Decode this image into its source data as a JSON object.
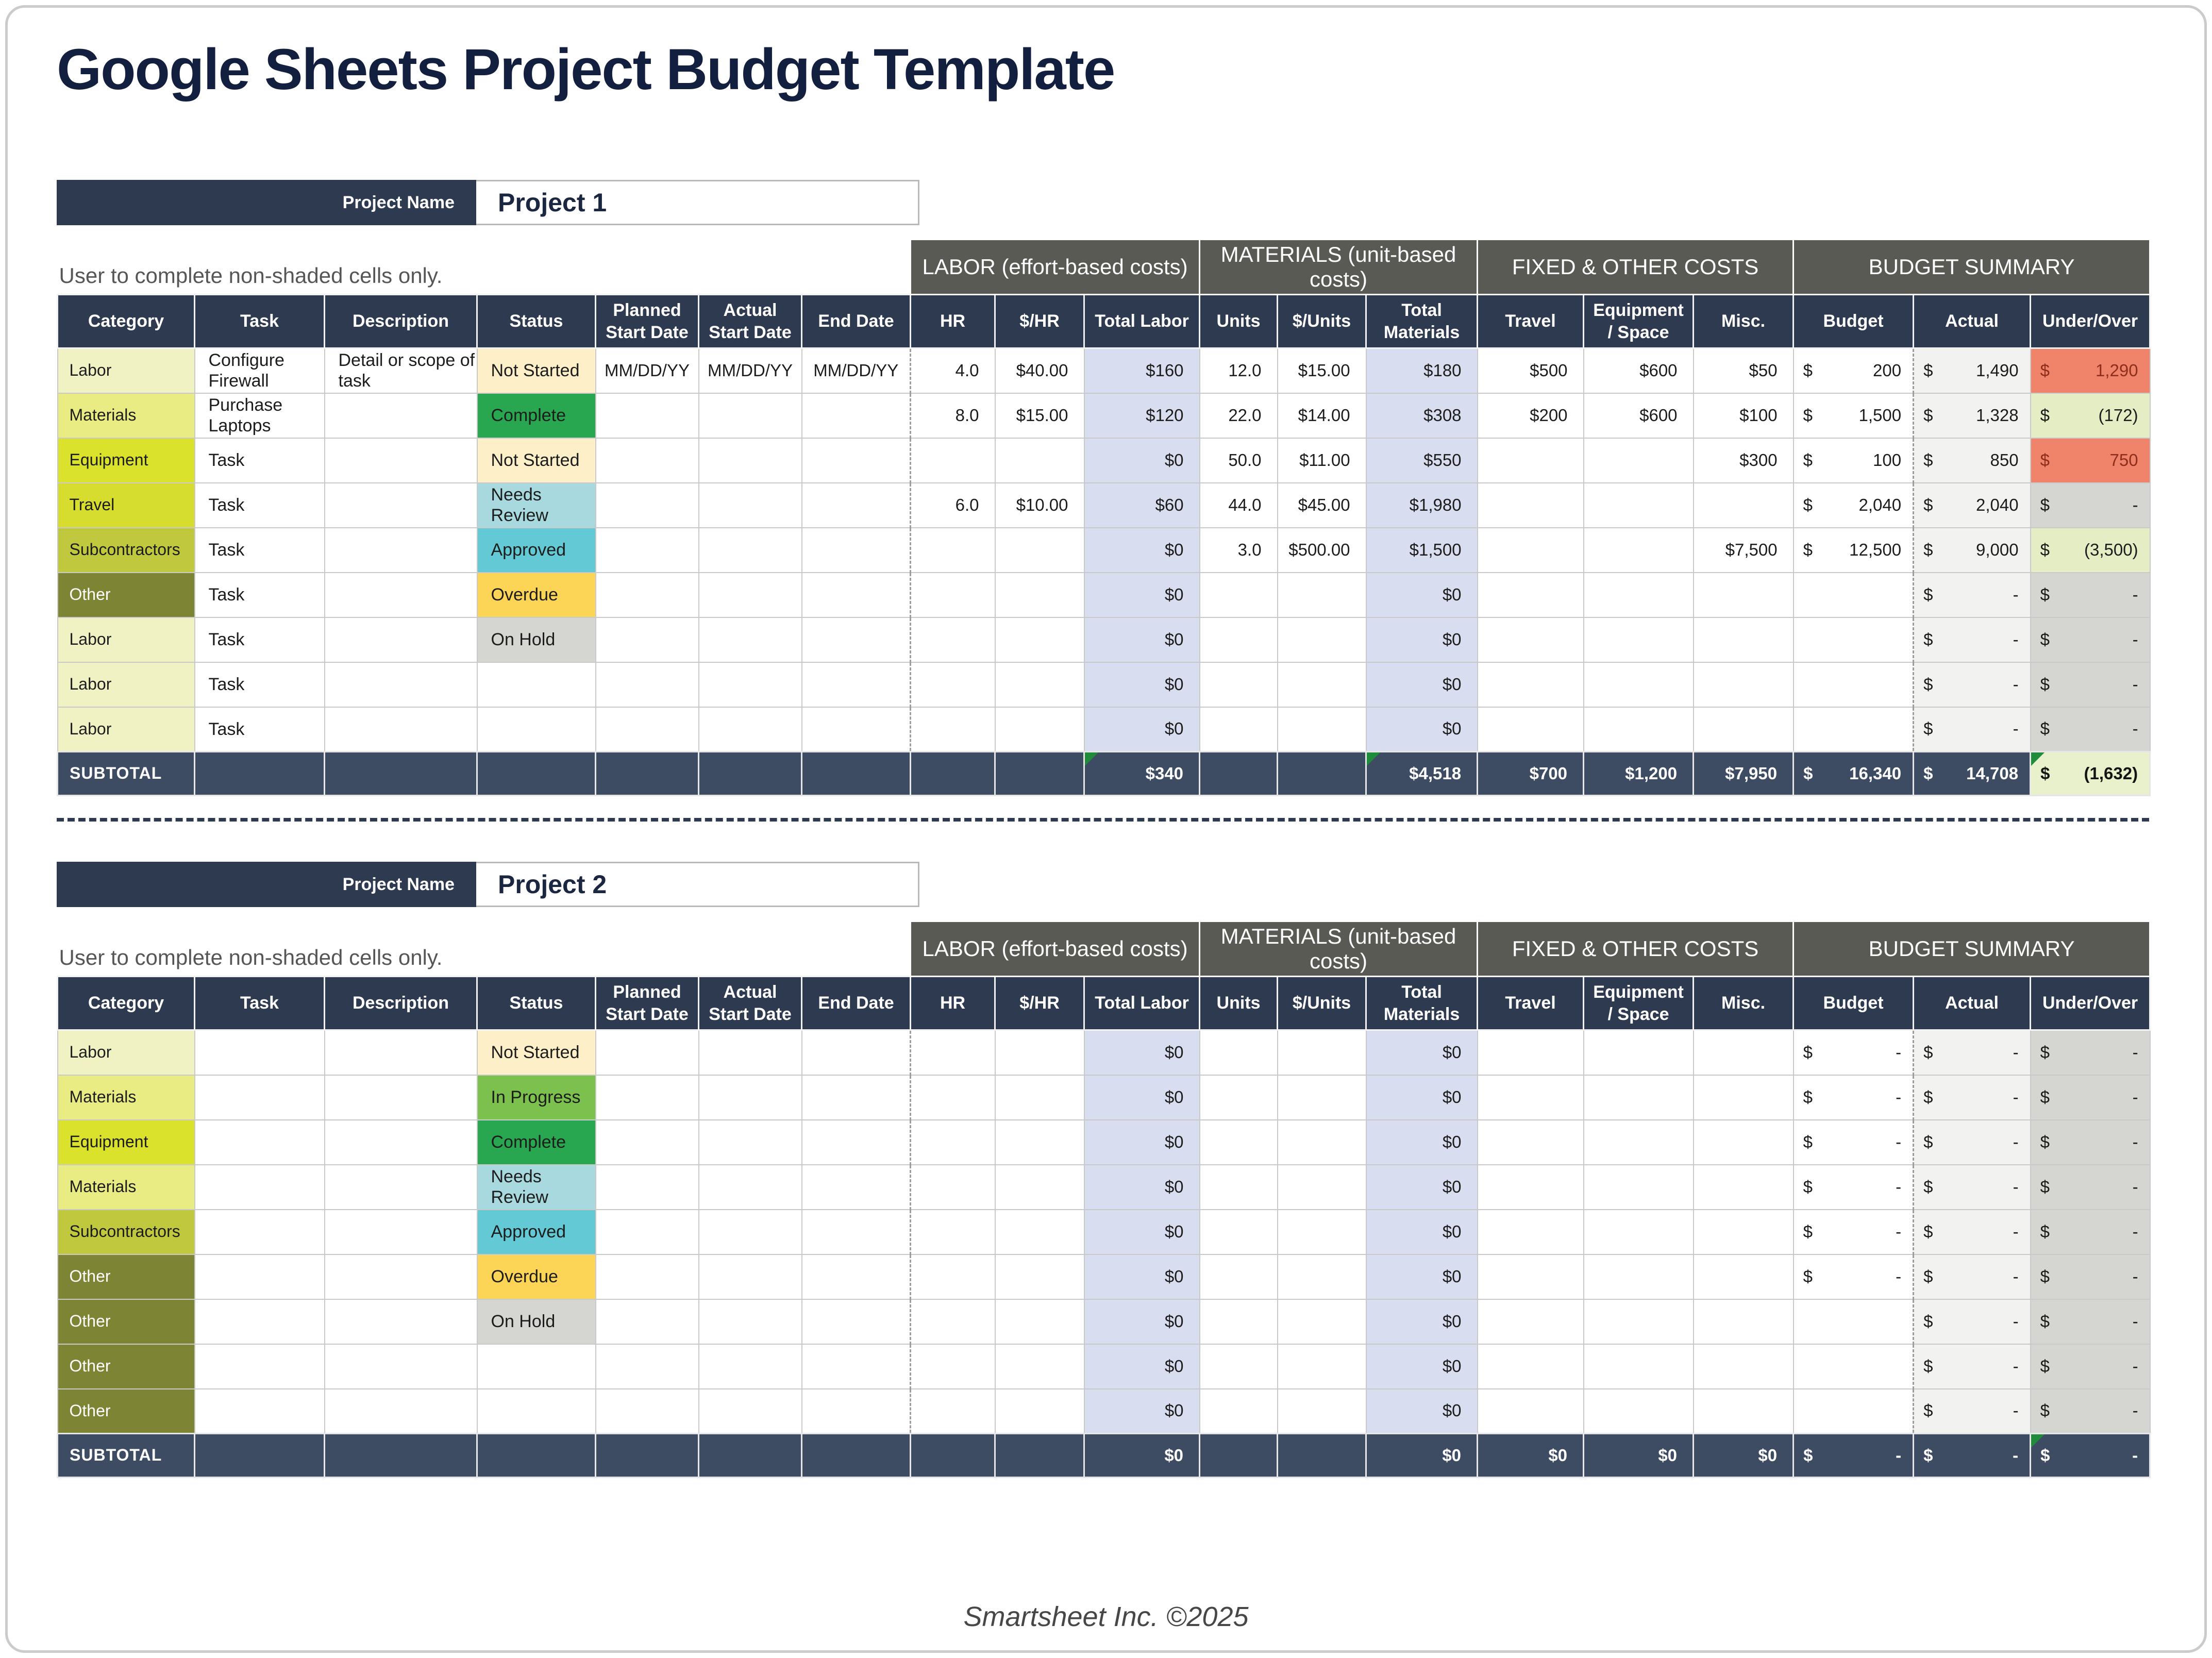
{
  "page": {
    "title": "Google Sheets Project Budget Template",
    "footer": "Smartsheet Inc. ©2025"
  },
  "colors": {
    "header_navy": "#2e3a50",
    "subtotal_navy": "#3d4b63",
    "group_gray": "#5a5a55",
    "title_navy": "#121f3e",
    "computed_lavender": "#d8ddf0",
    "actual_column_shade": "#f2f2f1",
    "over_budget_red": "#f0846a",
    "under_budget_green": "#e4edc4",
    "zero_gray": "#d5d5d1",
    "subtotal_result_bg": "#e9f0cc",
    "flag_triangle_green": "#1f8b3b",
    "cat_labor": "#f1f2c4",
    "cat_materials": "#e9ec83",
    "cat_equipment": "#dbe22b",
    "cat_travel": "#d6dd2e",
    "cat_subcontractors": "#c0c93e",
    "cat_other": "#7d8434",
    "status_not_started": "#fdf0c9",
    "status_in_progress": "#7cc14e",
    "status_complete": "#28a750",
    "status_needs_review": "#a8d9de",
    "status_approved": "#63c9d4",
    "status_overdue": "#fcd456",
    "status_on_hold": "#d5d5d1"
  },
  "table": {
    "groups": [
      {
        "label": "LABOR (effort-based costs)",
        "span": 3
      },
      {
        "label": "MATERIALS (unit-based costs)",
        "span": 3
      },
      {
        "label": "FIXED & OTHER COSTS",
        "span": 3
      },
      {
        "label": "BUDGET SUMMARY",
        "span": 3
      }
    ],
    "columns": [
      {
        "id": "category",
        "label": "Category"
      },
      {
        "id": "task",
        "label": "Task"
      },
      {
        "id": "description",
        "label": "Description"
      },
      {
        "id": "status",
        "label": "Status"
      },
      {
        "id": "planned_start",
        "label": "Planned Start Date"
      },
      {
        "id": "actual_start",
        "label": "Actual Start Date"
      },
      {
        "id": "end_date",
        "label": "End Date"
      },
      {
        "id": "hr",
        "label": "HR"
      },
      {
        "id": "rate",
        "label": "$/HR"
      },
      {
        "id": "total_labor",
        "label": "Total Labor"
      },
      {
        "id": "units",
        "label": "Units"
      },
      {
        "id": "unit_cost",
        "label": "$/Units"
      },
      {
        "id": "total_materials",
        "label": "Total Materials"
      },
      {
        "id": "travel",
        "label": "Travel"
      },
      {
        "id": "equipment",
        "label": "Equipment / Space"
      },
      {
        "id": "misc",
        "label": "Misc."
      },
      {
        "id": "budget",
        "label": "Budget"
      },
      {
        "id": "actual",
        "label": "Actual"
      },
      {
        "id": "under_over",
        "label": "Under/Over"
      }
    ]
  },
  "projects": [
    {
      "name_label": "Project Name",
      "name": "Project 1",
      "note": "User to complete non-shaded cells only.",
      "rows": [
        {
          "category": "Labor",
          "category_class": "cat-labor",
          "task": "Configure Firewall",
          "description": "Detail or scope of task",
          "status": "Not Started",
          "status_class": "st-not-started",
          "planned_start": "MM/DD/YY",
          "actual_start": "MM/DD/YY",
          "end_date": "MM/DD/YY",
          "hr": "4.0",
          "rate": "$40.00",
          "total_labor": "$160",
          "units": "12.0",
          "unit_cost": "$15.00",
          "total_materials": "$180",
          "travel": "$500",
          "equipment": "$600",
          "misc": "$50",
          "budget": "$ 200",
          "actual": "$ 1,490",
          "under_over": "$ 1,290",
          "under_over_class": "uo-over"
        },
        {
          "category": "Materials",
          "category_class": "cat-materials",
          "task": "Purchase Laptops",
          "description": "",
          "status": "Complete",
          "status_class": "st-complete",
          "planned_start": "",
          "actual_start": "",
          "end_date": "",
          "hr": "8.0",
          "rate": "$15.00",
          "total_labor": "$120",
          "units": "22.0",
          "unit_cost": "$14.00",
          "total_materials": "$308",
          "travel": "$200",
          "equipment": "$600",
          "misc": "$100",
          "budget": "$ 1,500",
          "actual": "$ 1,328",
          "under_over": "$ (172)",
          "under_over_class": "uo-under"
        },
        {
          "category": "Equipment",
          "category_class": "cat-equipment",
          "task": "Task",
          "description": "",
          "status": "Not Started",
          "status_class": "st-not-started",
          "planned_start": "",
          "actual_start": "",
          "end_date": "",
          "hr": "",
          "rate": "",
          "total_labor": "$0",
          "units": "50.0",
          "unit_cost": "$11.00",
          "total_materials": "$550",
          "travel": "",
          "equipment": "",
          "misc": "$300",
          "budget": "$ 100",
          "actual": "$ 850",
          "under_over": "$ 750",
          "under_over_class": "uo-over"
        },
        {
          "category": "Travel",
          "category_class": "cat-travel",
          "task": "Task",
          "description": "",
          "status": "Needs Review",
          "status_class": "st-needs-review",
          "planned_start": "",
          "actual_start": "",
          "end_date": "",
          "hr": "6.0",
          "rate": "$10.00",
          "total_labor": "$60",
          "units": "44.0",
          "unit_cost": "$45.00",
          "total_materials": "$1,980",
          "travel": "",
          "equipment": "",
          "misc": "",
          "budget": "$ 2,040",
          "actual": "$ 2,040",
          "under_over": "$ -",
          "under_over_class": "uo-zero"
        },
        {
          "category": "Subcontractors",
          "category_class": "cat-subcontractors",
          "task": "Task",
          "description": "",
          "status": "Approved",
          "status_class": "st-approved",
          "planned_start": "",
          "actual_start": "",
          "end_date": "",
          "hr": "",
          "rate": "",
          "total_labor": "$0",
          "units": "3.0",
          "unit_cost": "$500.00",
          "total_materials": "$1,500",
          "travel": "",
          "equipment": "",
          "misc": "$7,500",
          "budget": "$ 12,500",
          "actual": "$ 9,000",
          "under_over": "$ (3,500)",
          "under_over_class": "uo-under"
        },
        {
          "category": "Other",
          "category_class": "cat-other",
          "task": "Task",
          "description": "",
          "status": "Overdue",
          "status_class": "st-overdue",
          "planned_start": "",
          "actual_start": "",
          "end_date": "",
          "hr": "",
          "rate": "",
          "total_labor": "$0",
          "units": "",
          "unit_cost": "",
          "total_materials": "$0",
          "travel": "",
          "equipment": "",
          "misc": "",
          "budget": "",
          "actual": "$ -",
          "under_over": "$ -",
          "under_over_class": "uo-zero"
        },
        {
          "category": "Labor",
          "category_class": "cat-labor",
          "task": "Task",
          "description": "",
          "status": "On Hold",
          "status_class": "st-on-hold",
          "planned_start": "",
          "actual_start": "",
          "end_date": "",
          "hr": "",
          "rate": "",
          "total_labor": "$0",
          "units": "",
          "unit_cost": "",
          "total_materials": "$0",
          "travel": "",
          "equipment": "",
          "misc": "",
          "budget": "",
          "actual": "$ -",
          "under_over": "$ -",
          "under_over_class": "uo-zero"
        },
        {
          "category": "Labor",
          "category_class": "cat-labor",
          "task": "Task",
          "description": "",
          "status": "",
          "status_class": "",
          "planned_start": "",
          "actual_start": "",
          "end_date": "",
          "hr": "",
          "rate": "",
          "total_labor": "$0",
          "units": "",
          "unit_cost": "",
          "total_materials": "$0",
          "travel": "",
          "equipment": "",
          "misc": "",
          "budget": "",
          "actual": "$ -",
          "under_over": "$ -",
          "under_over_class": "uo-zero"
        },
        {
          "category": "Labor",
          "category_class": "cat-labor",
          "task": "Task",
          "description": "",
          "status": "",
          "status_class": "",
          "planned_start": "",
          "actual_start": "",
          "end_date": "",
          "hr": "",
          "rate": "",
          "total_labor": "$0",
          "units": "",
          "unit_cost": "",
          "total_materials": "$0",
          "travel": "",
          "equipment": "",
          "misc": "",
          "budget": "",
          "actual": "$ -",
          "under_over": "$ -",
          "under_over_class": "uo-zero"
        }
      ],
      "subtotal": {
        "label": "SUBTOTAL",
        "total_labor": "$340",
        "total_materials": "$4,518",
        "travel": "$700",
        "equipment": "$1,200",
        "misc": "$7,950",
        "budget": "$ 16,340",
        "actual": "$ 14,708",
        "under_over": "$ (1,632)",
        "under_over_class": "uo-sub-light",
        "flags": [
          "total_labor",
          "total_materials",
          "under_over"
        ]
      }
    },
    {
      "name_label": "Project Name",
      "name": "Project 2",
      "note": "User to complete non-shaded cells only.",
      "rows": [
        {
          "category": "Labor",
          "category_class": "cat-labor",
          "task": "",
          "description": "",
          "status": "Not Started",
          "status_class": "st-not-started",
          "planned_start": "",
          "actual_start": "",
          "end_date": "",
          "hr": "",
          "rate": "",
          "total_labor": "$0",
          "units": "",
          "unit_cost": "",
          "total_materials": "$0",
          "travel": "",
          "equipment": "",
          "misc": "",
          "budget": "$ -",
          "actual": "$ -",
          "under_over": "$ -",
          "under_over_class": "uo-zero"
        },
        {
          "category": "Materials",
          "category_class": "cat-materials",
          "task": "",
          "description": "",
          "status": "In Progress",
          "status_class": "st-in-progress",
          "planned_start": "",
          "actual_start": "",
          "end_date": "",
          "hr": "",
          "rate": "",
          "total_labor": "$0",
          "units": "",
          "unit_cost": "",
          "total_materials": "$0",
          "travel": "",
          "equipment": "",
          "misc": "",
          "budget": "$ -",
          "actual": "$ -",
          "under_over": "$ -",
          "under_over_class": "uo-zero"
        },
        {
          "category": "Equipment",
          "category_class": "cat-equipment",
          "task": "",
          "description": "",
          "status": "Complete",
          "status_class": "st-complete",
          "planned_start": "",
          "actual_start": "",
          "end_date": "",
          "hr": "",
          "rate": "",
          "total_labor": "$0",
          "units": "",
          "unit_cost": "",
          "total_materials": "$0",
          "travel": "",
          "equipment": "",
          "misc": "",
          "budget": "$ -",
          "actual": "$ -",
          "under_over": "$ -",
          "under_over_class": "uo-zero"
        },
        {
          "category": "Materials",
          "category_class": "cat-materials",
          "task": "",
          "description": "",
          "status": "Needs Review",
          "status_class": "st-needs-review",
          "planned_start": "",
          "actual_start": "",
          "end_date": "",
          "hr": "",
          "rate": "",
          "total_labor": "$0",
          "units": "",
          "unit_cost": "",
          "total_materials": "$0",
          "travel": "",
          "equipment": "",
          "misc": "",
          "budget": "$ -",
          "actual": "$ -",
          "under_over": "$ -",
          "under_over_class": "uo-zero"
        },
        {
          "category": "Subcontractors",
          "category_class": "cat-subcontractors",
          "task": "",
          "description": "",
          "status": "Approved",
          "status_class": "st-approved",
          "planned_start": "",
          "actual_start": "",
          "end_date": "",
          "hr": "",
          "rate": "",
          "total_labor": "$0",
          "units": "",
          "unit_cost": "",
          "total_materials": "$0",
          "travel": "",
          "equipment": "",
          "misc": "",
          "budget": "$ -",
          "actual": "$ -",
          "under_over": "$ -",
          "under_over_class": "uo-zero"
        },
        {
          "category": "Other",
          "category_class": "cat-other",
          "task": "",
          "description": "",
          "status": "Overdue",
          "status_class": "st-overdue",
          "planned_start": "",
          "actual_start": "",
          "end_date": "",
          "hr": "",
          "rate": "",
          "total_labor": "$0",
          "units": "",
          "unit_cost": "",
          "total_materials": "$0",
          "travel": "",
          "equipment": "",
          "misc": "",
          "budget": "$ -",
          "actual": "$ -",
          "under_over": "$ -",
          "under_over_class": "uo-zero"
        },
        {
          "category": "Other",
          "category_class": "cat-other",
          "task": "",
          "description": "",
          "status": "On Hold",
          "status_class": "st-on-hold",
          "planned_start": "",
          "actual_start": "",
          "end_date": "",
          "hr": "",
          "rate": "",
          "total_labor": "$0",
          "units": "",
          "unit_cost": "",
          "total_materials": "$0",
          "travel": "",
          "equipment": "",
          "misc": "",
          "budget": "",
          "actual": "$ -",
          "under_over": "$ -",
          "under_over_class": "uo-zero"
        },
        {
          "category": "Other",
          "category_class": "cat-other",
          "task": "",
          "description": "",
          "status": "",
          "status_class": "",
          "planned_start": "",
          "actual_start": "",
          "end_date": "",
          "hr": "",
          "rate": "",
          "total_labor": "$0",
          "units": "",
          "unit_cost": "",
          "total_materials": "$0",
          "travel": "",
          "equipment": "",
          "misc": "",
          "budget": "",
          "actual": "$ -",
          "under_over": "$ -",
          "under_over_class": "uo-zero"
        },
        {
          "category": "Other",
          "category_class": "cat-other",
          "task": "",
          "description": "",
          "status": "",
          "status_class": "",
          "planned_start": "",
          "actual_start": "",
          "end_date": "",
          "hr": "",
          "rate": "",
          "total_labor": "$0",
          "units": "",
          "unit_cost": "",
          "total_materials": "$0",
          "travel": "",
          "equipment": "",
          "misc": "",
          "budget": "",
          "actual": "$ -",
          "under_over": "$ -",
          "under_over_class": "uo-zero"
        }
      ],
      "subtotal": {
        "label": "SUBTOTAL",
        "total_labor": "$0",
        "total_materials": "$0",
        "travel": "$0",
        "equipment": "$0",
        "misc": "$0",
        "budget": "$ -",
        "actual": "$ -",
        "under_over": "$ -",
        "under_over_class": "",
        "flags": [
          "under_over"
        ]
      }
    }
  ]
}
